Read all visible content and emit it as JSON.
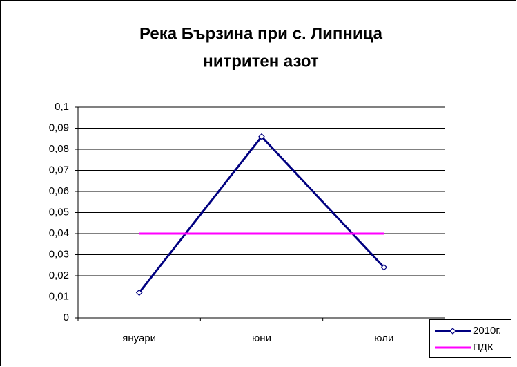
{
  "chart_data": {
    "type": "line",
    "title": [
      "Река Бързина при с. Липница",
      "нитритен азот"
    ],
    "categories": [
      "януари",
      "юни",
      "юли"
    ],
    "series": [
      {
        "name": "2010г.",
        "color": "#000080",
        "values": [
          0.012,
          0.086,
          0.024
        ],
        "marker": "diamond"
      },
      {
        "name": "ПДК",
        "color": "#ff00ff",
        "values": [
          0.04,
          0.04,
          0.04
        ]
      }
    ],
    "ylim": [
      0,
      0.1
    ],
    "yticks": [
      0,
      {
        "value": 0.01,
        "label": "0,01"
      },
      {
        "value": 0.02,
        "label": "0,02"
      },
      {
        "value": 0.03,
        "label": "0,03"
      },
      {
        "value": 0.04,
        "label": "0,04"
      },
      {
        "value": 0.05,
        "label": "0,05"
      },
      {
        "value": 0.06,
        "label": "0,06"
      },
      {
        "value": 0.07,
        "label": "0,07"
      },
      {
        "value": 0.08,
        "label": "0,08"
      },
      {
        "value": 0.09,
        "label": "0,09"
      },
      {
        "value": 0.1,
        "label": "0,1"
      }
    ],
    "grid": true,
    "legend": "bottom-right"
  }
}
